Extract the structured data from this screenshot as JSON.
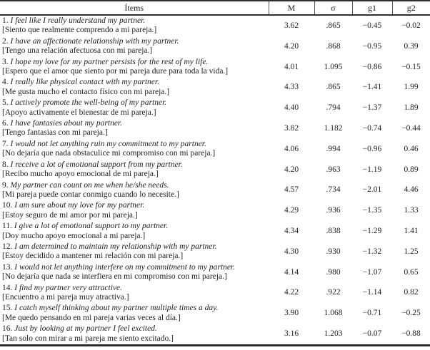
{
  "table": {
    "columns": [
      "Ítems",
      "M",
      "σ",
      "g1",
      "g2"
    ],
    "rows": [
      {
        "num": "1.",
        "en": "I feel like I really understand my partner.",
        "es": "[Siento que realmente comprendo a mi pareja.]",
        "m": "3.62",
        "sd": ".865",
        "g1": "−0.45",
        "g2": "−0.02"
      },
      {
        "num": "2.",
        "en": "I have an affectionate relationship with my partner.",
        "es": "[Tengo una relación afectuosa con mi pareja.]",
        "m": "4.20",
        "sd": ".868",
        "g1": "−0.95",
        "g2": "0.39"
      },
      {
        "num": "3.",
        "en": "I hope my love for my partner persists for the rest of my life.",
        "es": "[Espero que el amor que siento por mi pareja dure para toda la vida.]",
        "m": "4.01",
        "sd": "1.095",
        "g1": "−0.86",
        "g2": "−0.15"
      },
      {
        "num": "4.",
        "en": "I really like physical contact with my partner.",
        "es": "[Me gusta mucho el contacto físico con mi pareja.]",
        "m": "4.33",
        "sd": ".865",
        "g1": "−1.41",
        "g2": "1.99"
      },
      {
        "num": "5.",
        "en": "I actively promote the well-being of my partner.",
        "es": "[Apoyo activamente el bienestar de mi pareja.]",
        "m": "4.40",
        "sd": ".794",
        "g1": "−1.37",
        "g2": "1.89"
      },
      {
        "num": "6.",
        "en": "I have fantasies about my partner.",
        "es": "[Tengo fantasias con mi pareja.]",
        "m": "3.82",
        "sd": "1.182",
        "g1": "−0.74",
        "g2": "−0.44"
      },
      {
        "num": "7.",
        "en": "I would not let anything ruin my commitment to my partner.",
        "es": "[No dejaría que nada obstaculice mi compromiso con mi pareja.]",
        "m": "4.06",
        "sd": ".994",
        "g1": "−0.96",
        "g2": "0.46"
      },
      {
        "num": "8.",
        "en": "I receive a lot of emotional support from my partner.",
        "es": "[Recibo mucho apoyo emocional de mi pareja.]",
        "m": "4.20",
        "sd": ".963",
        "g1": "−1.19",
        "g2": "0.89"
      },
      {
        "num": "9.",
        "en": "My partner can count on me when he/she needs.",
        "es": "[Mi pareja puede contar conmigo cuando lo necesite.]",
        "m": "4.57",
        "sd": ".734",
        "g1": "−2.01",
        "g2": "4.46"
      },
      {
        "num": "10.",
        "en": "I am sure about my love for my partner.",
        "es": "[Estoy seguro de mi amor por mi pareja.]",
        "m": "4.29",
        "sd": ".936",
        "g1": "−1.35",
        "g2": "1.33"
      },
      {
        "num": "11.",
        "en": "I give a lot of emotional support to my partner.",
        "es": "[Doy mucho apoyo emocional a mi pareja.]",
        "m": "4.34",
        "sd": ".838",
        "g1": "−1.29",
        "g2": "1.41"
      },
      {
        "num": "12.",
        "en": "I am determined to maintain my relationship with my partner.",
        "es": "[Estoy decidido a mantener mi relación con mi pareja.]",
        "m": "4.30",
        "sd": ".930",
        "g1": "−1.32",
        "g2": "1.25"
      },
      {
        "num": "13.",
        "en": "I would not let anything interfere on my commitment to my partner.",
        "es": "[No dejaría que nada se interfiera en mi compromiso con mi pareja.]",
        "m": "4.14",
        "sd": ".980",
        "g1": "−1.07",
        "g2": "0.65"
      },
      {
        "num": "14.",
        "en": "I find my partner very attractive.",
        "es": "[Encuentro a mi pareja muy atractiva.]",
        "m": "4.22",
        "sd": ".922",
        "g1": "−1.14",
        "g2": "0.82"
      },
      {
        "num": "15.",
        "en": "I catch myself thinking about my partner multiple times a day.",
        "es": "[Me quedo pensando en mi pareja varias veces al día.]",
        "m": "3.90",
        "sd": "1.068",
        "g1": "−0.71",
        "g2": "−0.25"
      },
      {
        "num": "16.",
        "en": "Just by looking at my partner I feel excited.",
        "es": "[Tan solo con mirar a mi pareja me siento excitado.]",
        "m": "3.16",
        "sd": "1.203",
        "g1": "−0.07",
        "g2": "−0.88"
      }
    ]
  }
}
